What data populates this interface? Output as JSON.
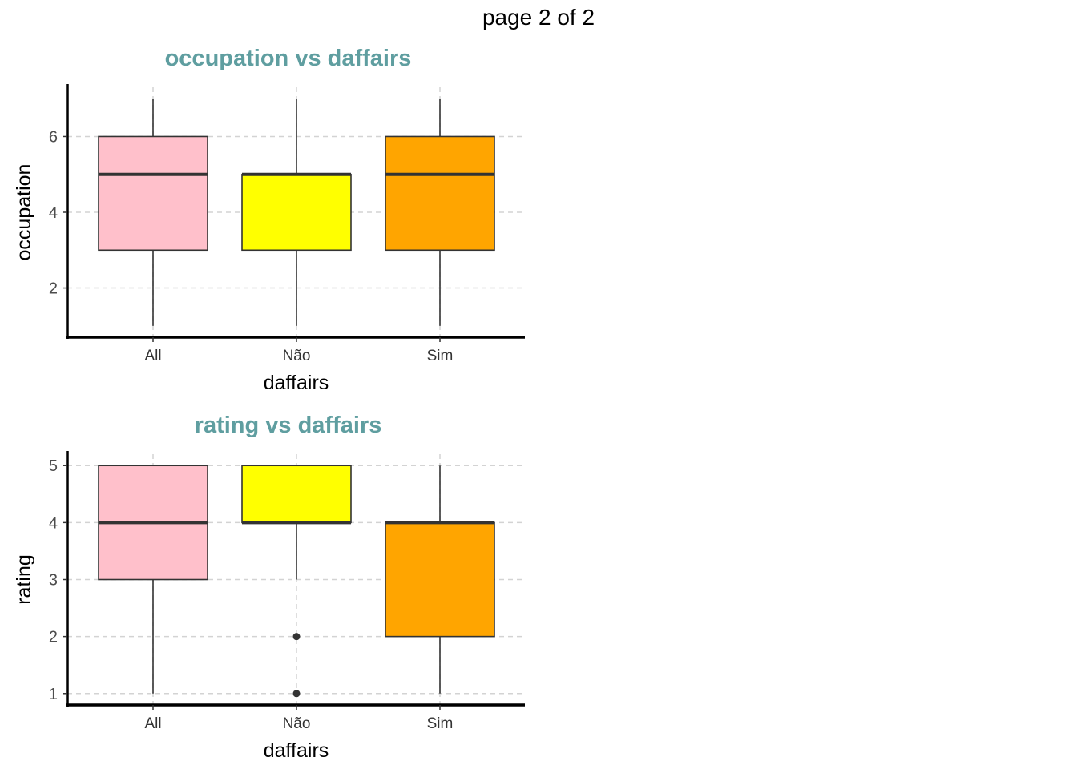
{
  "page": {
    "label": "page 2 of 2"
  },
  "colors": {
    "title": "#5f9ea0",
    "box_outline": "#333333",
    "grid": "#d3d3d3",
    "axis": "#000000"
  },
  "chart_data": [
    {
      "type": "boxplot",
      "title": "occupation vs daffairs",
      "xlabel": "daffairs",
      "ylabel": "occupation",
      "categories": [
        "All",
        "Não",
        "Sim"
      ],
      "fill_colors": [
        "#ffc0cb",
        "#ffff00",
        "#ffa500"
      ],
      "boxes": [
        {
          "category": "All",
          "min": 1,
          "q1": 3,
          "median": 5,
          "q3": 6,
          "max": 7,
          "outliers": []
        },
        {
          "category": "Não",
          "min": 1,
          "q1": 3,
          "median": 5,
          "q3": 5,
          "max": 7,
          "outliers": []
        },
        {
          "category": "Sim",
          "min": 1,
          "q1": 3,
          "median": 5,
          "q3": 6,
          "max": 7,
          "outliers": []
        }
      ],
      "yticks": [
        2,
        4,
        6
      ],
      "ylim": [
        0.7,
        7.3
      ],
      "grid": "dashed"
    },
    {
      "type": "boxplot",
      "title": "rating vs daffairs",
      "xlabel": "daffairs",
      "ylabel": "rating",
      "categories": [
        "All",
        "Não",
        "Sim"
      ],
      "fill_colors": [
        "#ffc0cb",
        "#ffff00",
        "#ffa500"
      ],
      "boxes": [
        {
          "category": "All",
          "min": 1,
          "q1": 3,
          "median": 4,
          "q3": 5,
          "max": 5,
          "outliers": []
        },
        {
          "category": "Não",
          "min": 3,
          "q1": 4,
          "median": 4,
          "q3": 5,
          "max": 5,
          "outliers": [
            2,
            1
          ]
        },
        {
          "category": "Sim",
          "min": 1,
          "q1": 2,
          "median": 4,
          "q3": 4,
          "max": 5,
          "outliers": []
        }
      ],
      "yticks": [
        1,
        2,
        3,
        4,
        5
      ],
      "ylim": [
        0.8,
        5.2
      ],
      "grid": "dashed"
    }
  ]
}
